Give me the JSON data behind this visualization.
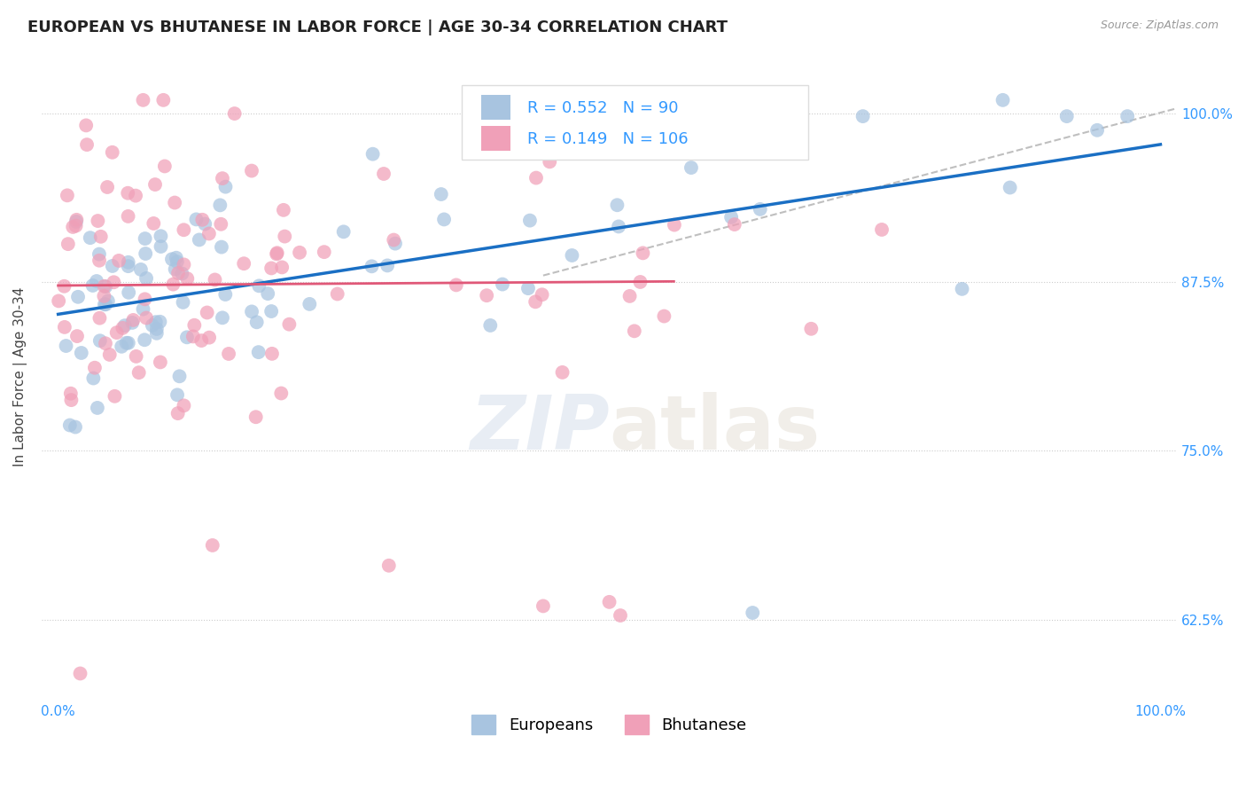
{
  "title": "EUROPEAN VS BHUTANESE IN LABOR FORCE | AGE 30-34 CORRELATION CHART",
  "source": "Source: ZipAtlas.com",
  "ylabel": "In Labor Force | Age 30-34",
  "legend_labels": [
    "Europeans",
    "Bhutanese"
  ],
  "european_color": "#a8c4e0",
  "bhutanese_color": "#f0a0b8",
  "european_line_color": "#1a6fc4",
  "bhutanese_line_color": "#e05878",
  "dashed_line_color": "#b8b8b8",
  "R_european": 0.552,
  "N_european": 90,
  "R_bhutanese": 0.149,
  "N_bhutanese": 106,
  "xlim": [
    0.0,
    1.0
  ],
  "yticks": [
    0.625,
    0.75,
    0.875,
    1.0
  ],
  "ytick_labels": [
    "62.5%",
    "75.0%",
    "87.5%",
    "100.0%"
  ],
  "xtick_labels": [
    "0.0%",
    "100.0%"
  ],
  "xticks": [
    0.0,
    1.0
  ],
  "background_color": "#ffffff",
  "watermark_zip": "ZIP",
  "watermark_atlas": "atlas",
  "title_fontsize": 13,
  "label_fontsize": 11,
  "tick_fontsize": 11,
  "legend_fontsize": 13,
  "ylim_low": 0.565,
  "ylim_high": 1.045
}
